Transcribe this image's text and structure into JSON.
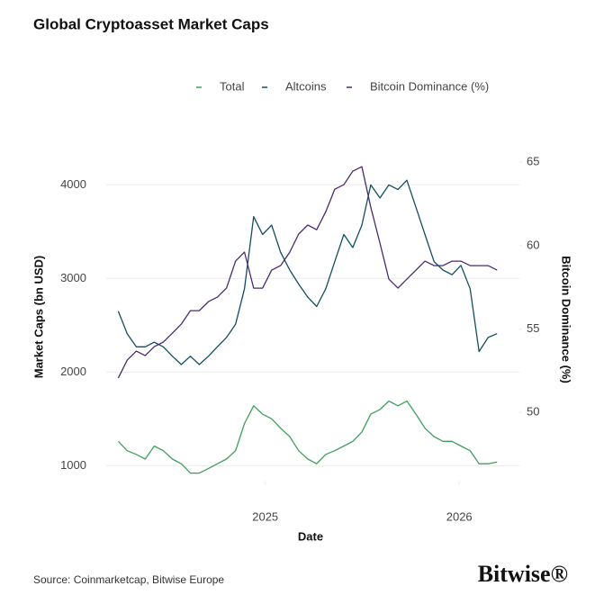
{
  "chart_data": {
    "type": "line",
    "title": "Global Cryptoasset Market Caps",
    "x_label": "Date",
    "y_label": "Market Caps (bn USD)",
    "y2_label": "Bitcoin Dominance (%)",
    "source": "Source: Coinmarketcap, Bitwise Europe",
    "brand": "Bitwise®",
    "legend": "top-right",
    "grid": true,
    "xlim": [
      2024.18,
      2026.31
    ],
    "xticks": [
      2025,
      2026
    ],
    "ylim": [
      830,
      4340
    ],
    "yticks": [
      1000,
      2000,
      3000,
      4000
    ],
    "y2lim": [
      45.85,
      65.55
    ],
    "y2ticks": [
      50,
      55,
      60,
      65
    ],
    "x": [
      2024.242,
      2024.288,
      2024.335,
      2024.381,
      2024.428,
      2024.474,
      2024.521,
      2024.567,
      2024.614,
      2024.66,
      2024.707,
      2024.753,
      2024.8,
      2024.847,
      2024.893,
      2024.94,
      2024.986,
      2025.033,
      2025.079,
      2025.126,
      2025.172,
      2025.219,
      2025.265,
      2025.312,
      2025.358,
      2025.405,
      2025.451,
      2025.498,
      2025.544,
      2025.591,
      2025.637,
      2025.684,
      2025.73,
      2025.777,
      2025.823,
      2025.87,
      2025.916,
      2025.963,
      2026.009,
      2026.056,
      2026.102,
      2026.149,
      2026.195
    ],
    "series": [
      {
        "name": "Total",
        "color": "#3f9e5f",
        "values": [
          1260,
          1160,
          1120,
          1070,
          1210,
          1160,
          1070,
          1020,
          920,
          920,
          970,
          1020,
          1070,
          1160,
          1450,
          1640,
          1550,
          1500,
          1400,
          1310,
          1160,
          1070,
          1020,
          1120,
          1160,
          1210,
          1260,
          1360,
          1550,
          1600,
          1690,
          1640,
          1690,
          1550,
          1400,
          1310,
          1260,
          1260,
          1210,
          1160,
          1020,
          1020,
          1040
        ]
      },
      {
        "name": "Altcoins",
        "color": "#124e60",
        "values": [
          2650,
          2410,
          2270,
          2270,
          2320,
          2270,
          2170,
          2080,
          2170,
          2080,
          2170,
          2270,
          2370,
          2510,
          2890,
          3660,
          3470,
          3570,
          3280,
          3090,
          2940,
          2800,
          2700,
          2890,
          3180,
          3470,
          3330,
          3570,
          4000,
          3860,
          4000,
          3950,
          4050,
          3760,
          3470,
          3180,
          3090,
          3040,
          3140,
          2890,
          2220,
          2370,
          2410
        ]
      },
      {
        "name": "Bitcoin Dominance (%)",
        "color": "#4a2a70",
        "axis": "y2",
        "values": [
          52.06,
          53.13,
          53.67,
          53.4,
          53.94,
          54.21,
          54.75,
          55.29,
          56.1,
          56.1,
          56.64,
          56.91,
          57.45,
          59.07,
          59.61,
          57.45,
          57.45,
          58.53,
          58.8,
          59.61,
          60.69,
          61.23,
          60.95,
          62.03,
          63.38,
          63.65,
          64.46,
          64.73,
          62.3,
          60.15,
          57.99,
          57.45,
          57.99,
          58.53,
          59.07,
          58.8,
          58.8,
          59.07,
          59.07,
          58.8,
          58.8,
          58.8,
          58.53
        ]
      }
    ]
  }
}
